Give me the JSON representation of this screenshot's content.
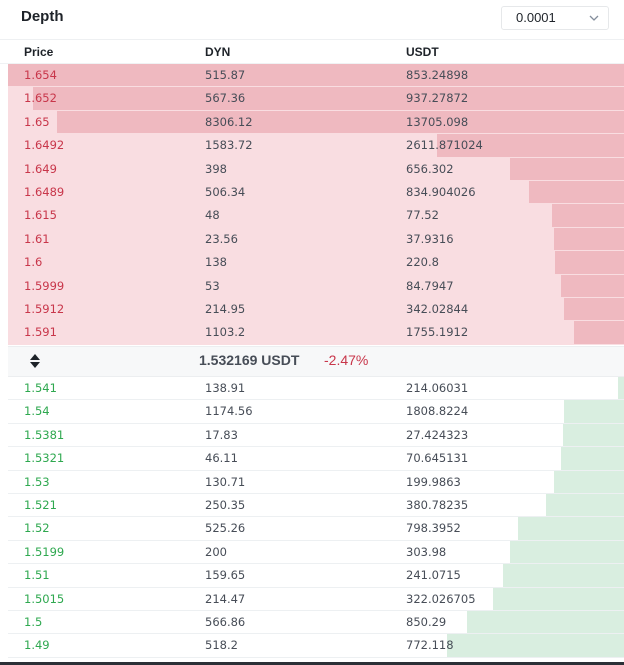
{
  "header": {
    "title": "Depth",
    "precision": "0.0001",
    "precision_icon": "chevron-down-icon"
  },
  "columns": {
    "price": "Price",
    "base": "DYN",
    "quote": "USDT"
  },
  "colors": {
    "ask_text": "#c8364a",
    "ask_bar": "#efb9c0",
    "ask_bg": "#f9dde1",
    "bid_text": "#2ea84f",
    "bid_bar": "#d9eee0"
  },
  "asks": [
    {
      "price": "1.654",
      "amount": "515.87",
      "total": "853.24898",
      "depth_fraction": 1.0
    },
    {
      "price": "1.652",
      "amount": "567.36",
      "total": "937.27872",
      "depth_fraction": 0.96
    },
    {
      "price": "1.65",
      "amount": "8306.12",
      "total": "13705.098",
      "depth_fraction": 0.92
    },
    {
      "price": "1.6492",
      "amount": "1583.72",
      "total": "2611.871024",
      "depth_fraction": 0.304
    },
    {
      "price": "1.649",
      "amount": "398",
      "total": "656.302",
      "depth_fraction": 0.185
    },
    {
      "price": "1.6489",
      "amount": "506.34",
      "total": "834.904026",
      "depth_fraction": 0.155
    },
    {
      "price": "1.615",
      "amount": "48",
      "total": "77.52",
      "depth_fraction": 0.117
    },
    {
      "price": "1.61",
      "amount": "23.56",
      "total": "37.9316",
      "depth_fraction": 0.114
    },
    {
      "price": "1.6",
      "amount": "138",
      "total": "220.8",
      "depth_fraction": 0.112
    },
    {
      "price": "1.5999",
      "amount": "53",
      "total": "84.7947",
      "depth_fraction": 0.102
    },
    {
      "price": "1.5912",
      "amount": "214.95",
      "total": "342.02844",
      "depth_fraction": 0.097
    },
    {
      "price": "1.591",
      "amount": "1103.2",
      "total": "1755.1912",
      "depth_fraction": 0.081
    }
  ],
  "mid": {
    "price": "1.532169 USDT",
    "change": "-2.47%",
    "sort_icon": "sort-arrows-icon"
  },
  "bids": [
    {
      "price": "1.541",
      "amount": "138.91",
      "total": "214.06031",
      "depth_fraction": 0.01
    },
    {
      "price": "1.54",
      "amount": "1174.56",
      "total": "1808.8224",
      "depth_fraction": 0.097
    },
    {
      "price": "1.5381",
      "amount": "17.83",
      "total": "27.424323",
      "depth_fraction": 0.099
    },
    {
      "price": "1.5321",
      "amount": "46.11",
      "total": "70.645131",
      "depth_fraction": 0.102
    },
    {
      "price": "1.53",
      "amount": "130.71",
      "total": "199.9863",
      "depth_fraction": 0.114
    },
    {
      "price": "1.521",
      "amount": "250.35",
      "total": "380.78235",
      "depth_fraction": 0.127
    },
    {
      "price": "1.52",
      "amount": "525.26",
      "total": "798.3952",
      "depth_fraction": 0.172
    },
    {
      "price": "1.5199",
      "amount": "200",
      "total": "303.98",
      "depth_fraction": 0.185
    },
    {
      "price": "1.51",
      "amount": "159.65",
      "total": "241.0715",
      "depth_fraction": 0.196
    },
    {
      "price": "1.5015",
      "amount": "214.47",
      "total": "322.026705",
      "depth_fraction": 0.213
    },
    {
      "price": "1.5",
      "amount": "566.86",
      "total": "850.29",
      "depth_fraction": 0.255
    },
    {
      "price": "1.49",
      "amount": "518.2",
      "total": "772.118",
      "depth_fraction": 0.287
    }
  ]
}
